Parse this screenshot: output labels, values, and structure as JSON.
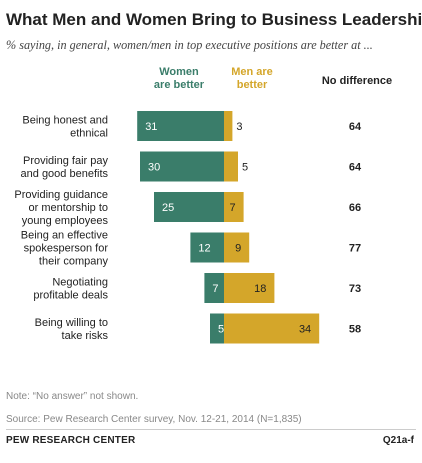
{
  "title": "What Men and Women Bring to Business Leadership",
  "subtitle": "% saying, in general, women/men in top executive positions are better at ...",
  "headers": {
    "women": [
      "Women",
      "are better"
    ],
    "men": [
      "Men are",
      "better"
    ],
    "no_difference": "No difference"
  },
  "colors": {
    "women": "#3a7d6a",
    "men": "#d4a62a"
  },
  "chart_data": {
    "type": "bar",
    "orientation": "horizontal-diverging",
    "categories": [
      [
        "Being honest and",
        "ethnical"
      ],
      [
        "Providing fair pay",
        "and good benefits"
      ],
      [
        "Providing guidance",
        "or mentorship to",
        "young employees"
      ],
      [
        "Being an effective",
        "spokesperson for",
        "their company"
      ],
      [
        "Negotiating",
        "profitable deals"
      ],
      [
        "Being willing to",
        "take risks"
      ]
    ],
    "series": [
      {
        "name": "Women are better",
        "values": [
          31,
          30,
          25,
          12,
          7,
          5
        ]
      },
      {
        "name": "Men are better",
        "values": [
          3,
          5,
          7,
          9,
          18,
          34
        ]
      },
      {
        "name": "No difference",
        "values": [
          64,
          64,
          66,
          77,
          73,
          58
        ]
      }
    ]
  },
  "note": "Note: “No answer” not shown.",
  "source": "Source: Pew Research Center survey, Nov. 12-21, 2014 (N=1,835)",
  "org": "PEW RESEARCH CENTER",
  "code": "Q21a-f"
}
